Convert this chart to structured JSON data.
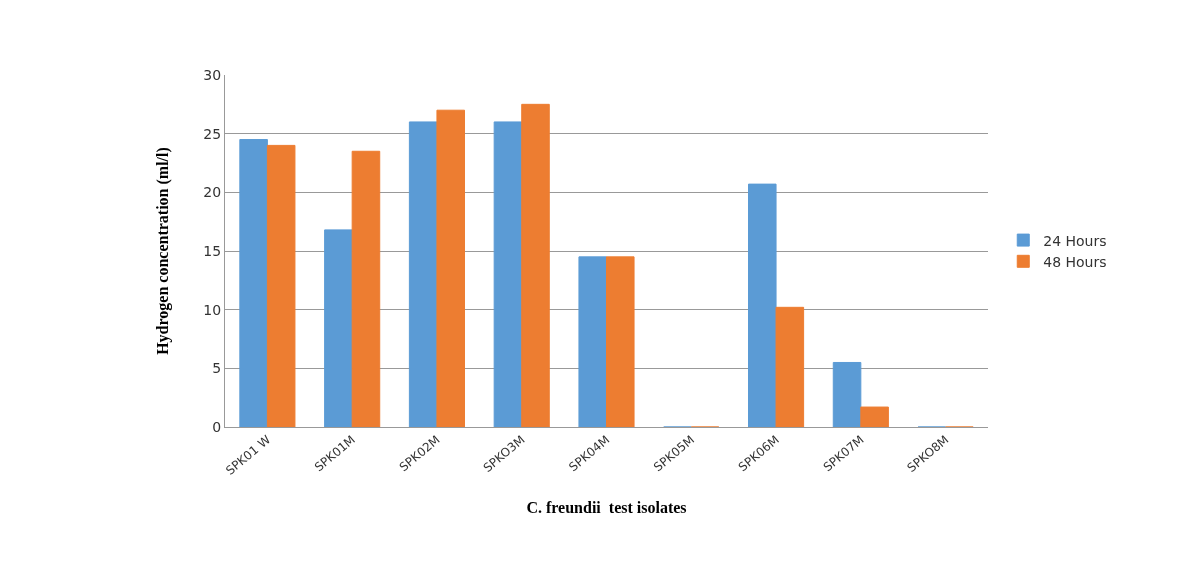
{
  "chart_data": {
    "type": "bar",
    "xlabel": "C. freundii  test isolates",
    "ylabel": "Hydrogen concentration (ml/l)",
    "categories": [
      "SPK01 W",
      "SPK01M",
      "SPK02M",
      "SPKO3M",
      "SPK04M",
      "SPK05M",
      "SPK06M",
      "SPK07M",
      "SPKO8M"
    ],
    "series": [
      {
        "name": "24 Hours",
        "color": "#5b9bd5",
        "values": [
          24.5,
          16.8,
          26,
          26,
          14.5,
          0,
          20.7,
          5.5,
          0
        ]
      },
      {
        "name": "48 Hours",
        "color": "#ed7d31",
        "values": [
          24,
          23.5,
          27,
          27.5,
          14.5,
          0,
          10.2,
          1.7,
          0
        ]
      }
    ],
    "ylim": [
      0,
      30
    ],
    "yticks": [
      0,
      5,
      10,
      15,
      20,
      25,
      30
    ],
    "grid": "y",
    "legend": "right"
  }
}
